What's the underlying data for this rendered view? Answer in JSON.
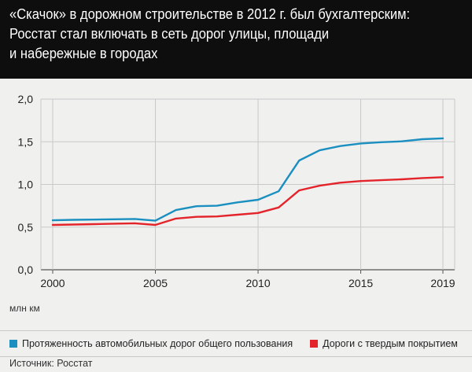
{
  "title": "«Скачок» в дорожном строительстве в 2012 г. был бухгалтерским:\nРосстат стал включать в сеть дорог улицы, площади\nи набережные в городах",
  "unit_label": "млн км",
  "source": "Источник: Росстат",
  "colors": {
    "header_bg": "#0e0e0e",
    "series_blue": "#1a8fc0",
    "series_red": "#e3242b",
    "grid": "#c9c9c9"
  },
  "chart_data": {
    "type": "line",
    "x": [
      2000,
      2001,
      2002,
      2003,
      2004,
      2005,
      2006,
      2007,
      2008,
      2009,
      2010,
      2011,
      2012,
      2013,
      2014,
      2015,
      2016,
      2017,
      2018,
      2019
    ],
    "x_ticks": [
      "2000",
      "2005",
      "2010",
      "2015",
      "2019"
    ],
    "y_ticks": [
      "0,0",
      "0,5",
      "1,0",
      "1,5",
      "2,0"
    ],
    "ylim": [
      0,
      2.0
    ],
    "series": [
      {
        "name": "Протяженность автомобильных дорог общего пользования",
        "color": "#1a8fc0",
        "values": [
          0.58,
          0.585,
          0.588,
          0.592,
          0.595,
          0.575,
          0.7,
          0.745,
          0.75,
          0.79,
          0.82,
          0.92,
          1.28,
          1.4,
          1.45,
          1.48,
          1.495,
          1.505,
          1.53,
          1.54
        ]
      },
      {
        "name": "Дороги с твердым покрытием",
        "color": "#e3242b",
        "values": [
          0.525,
          0.53,
          0.535,
          0.54,
          0.545,
          0.525,
          0.6,
          0.62,
          0.625,
          0.645,
          0.665,
          0.73,
          0.93,
          0.985,
          1.02,
          1.04,
          1.05,
          1.06,
          1.075,
          1.085
        ]
      }
    ],
    "grid": true,
    "legend_position": "bottom"
  }
}
